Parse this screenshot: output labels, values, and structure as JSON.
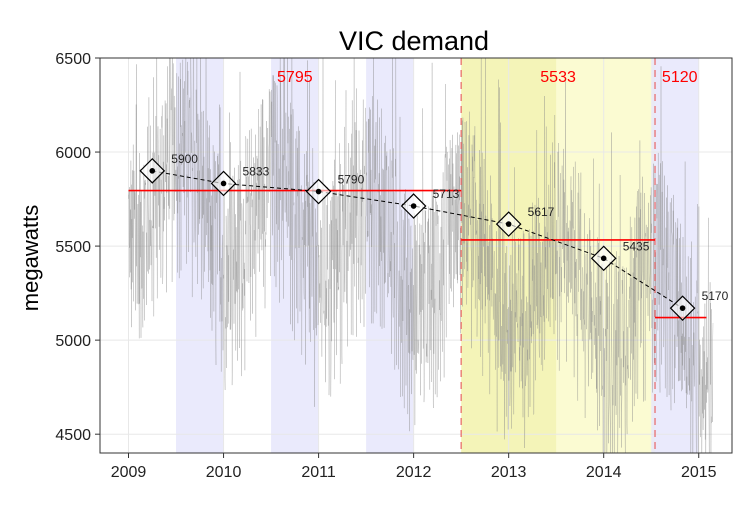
{
  "chart_data": {
    "type": "line",
    "title": "VIC demand",
    "xlabel": "",
    "ylabel": "megawatts",
    "xlim": [
      2008.7,
      2015.35
    ],
    "ylim": [
      4400,
      6500
    ],
    "x_ticks": [
      2009,
      2010,
      2011,
      2012,
      2013,
      2014,
      2015
    ],
    "y_ticks": [
      4500,
      5000,
      5500,
      6000,
      6500
    ],
    "grid": true,
    "annual_points": {
      "x": [
        2009.25,
        2010.0,
        2011.0,
        2012.0,
        2013.0,
        2014.0,
        2014.83
      ],
      "y": [
        5900,
        5833,
        5790,
        5713,
        5617,
        5435,
        5170
      ],
      "labels": [
        "5900",
        "5833",
        "5790",
        "5713",
        "5617",
        "5435",
        "5170"
      ]
    },
    "period_means": [
      {
        "x_start": 2009.0,
        "x_end": 2012.5,
        "value": 5795,
        "label": "5795"
      },
      {
        "x_start": 2012.5,
        "x_end": 2014.54,
        "value": 5533,
        "label": "5533"
      },
      {
        "x_start": 2014.54,
        "x_end": 2015.08,
        "value": 5120,
        "label": "5120"
      }
    ],
    "period_boundaries": [
      2012.5,
      2014.54
    ],
    "winter_shading": [
      [
        2009.5,
        2010.0
      ],
      [
        2010.5,
        2011.0
      ],
      [
        2011.5,
        2012.0
      ],
      [
        2014.5,
        2015.0
      ]
    ],
    "highlight_regions": [
      {
        "from": 2012.5,
        "to": 2014.54,
        "color": "#f4f4b8"
      },
      {
        "from": 2013.5,
        "to": 2014.54,
        "color": "#fbfbd2"
      }
    ],
    "colors": {
      "daily_series": "#8a8a8a",
      "mean_line": "#ff0000",
      "boundary": "#e86666",
      "winter": "#e6e6fb",
      "grid": "#e8e8e8",
      "trend": "#000000"
    },
    "daily_series_note": "daily demand trace oscillating roughly between 4400 and 6500 MW"
  }
}
